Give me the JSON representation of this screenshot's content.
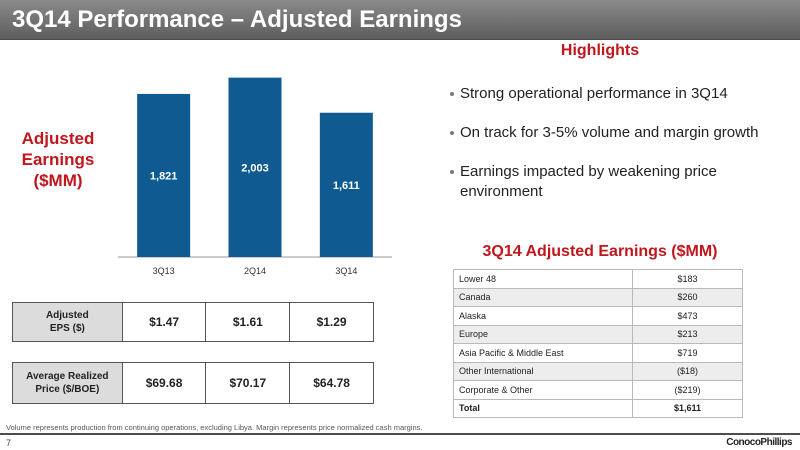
{
  "slide": {
    "title": "3Q14 Performance – Adjusted Earnings",
    "page_number": "7",
    "footnote": "Volume represents production from continuing operations, excluding Libya. Margin represents price normalized cash margins.",
    "logo_text": "ConocoPhillips"
  },
  "left_label": {
    "line1": "Adjusted",
    "line2": "Earnings",
    "line3": "($MM)"
  },
  "chart_data": {
    "type": "bar",
    "categories": [
      "3Q13",
      "2Q14",
      "3Q14"
    ],
    "values": [
      1821,
      2003,
      1611
    ],
    "value_labels": [
      "1,821",
      "2,003",
      "1,611"
    ],
    "ylim": [
      0,
      2200
    ],
    "bar_color": "#0f5a91",
    "label_color": "#ffffff",
    "title": "",
    "xlabel": "",
    "ylabel": "",
    "grid": false
  },
  "highlights": {
    "title": "Highlights",
    "items": [
      "Strong operational performance in 3Q14",
      "On track for 3-5% volume and margin growth",
      "Earnings impacted by weakening price environment"
    ]
  },
  "segment_table": {
    "title": "3Q14 Adjusted Earnings ($MM)",
    "rows": [
      {
        "segment": "Lower 48",
        "value": "$183"
      },
      {
        "segment": "Canada",
        "value": "$260"
      },
      {
        "segment": "Alaska",
        "value": "$473"
      },
      {
        "segment": "Europe",
        "value": "$213"
      },
      {
        "segment": "Asia Pacific & Middle East",
        "value": "$719"
      },
      {
        "segment": "Other International",
        "value": "($18)"
      },
      {
        "segment": "Corporate & Other",
        "value": "($219)"
      }
    ],
    "total": {
      "segment": "Total",
      "value": "$1,611"
    }
  },
  "eps_row": {
    "label_line1": "Adjusted",
    "label_line2": "EPS ($)",
    "values": [
      "$1.47",
      "$1.61",
      "$1.29"
    ]
  },
  "price_row": {
    "label_line1": "Average Realized",
    "label_line2": "Price ($/BOE)",
    "values": [
      "$69.68",
      "$70.17",
      "$64.78"
    ]
  },
  "colors": {
    "accent_red": "#c0161c",
    "bar_blue": "#0f5a91",
    "title_bar": "#6e6e6e"
  }
}
